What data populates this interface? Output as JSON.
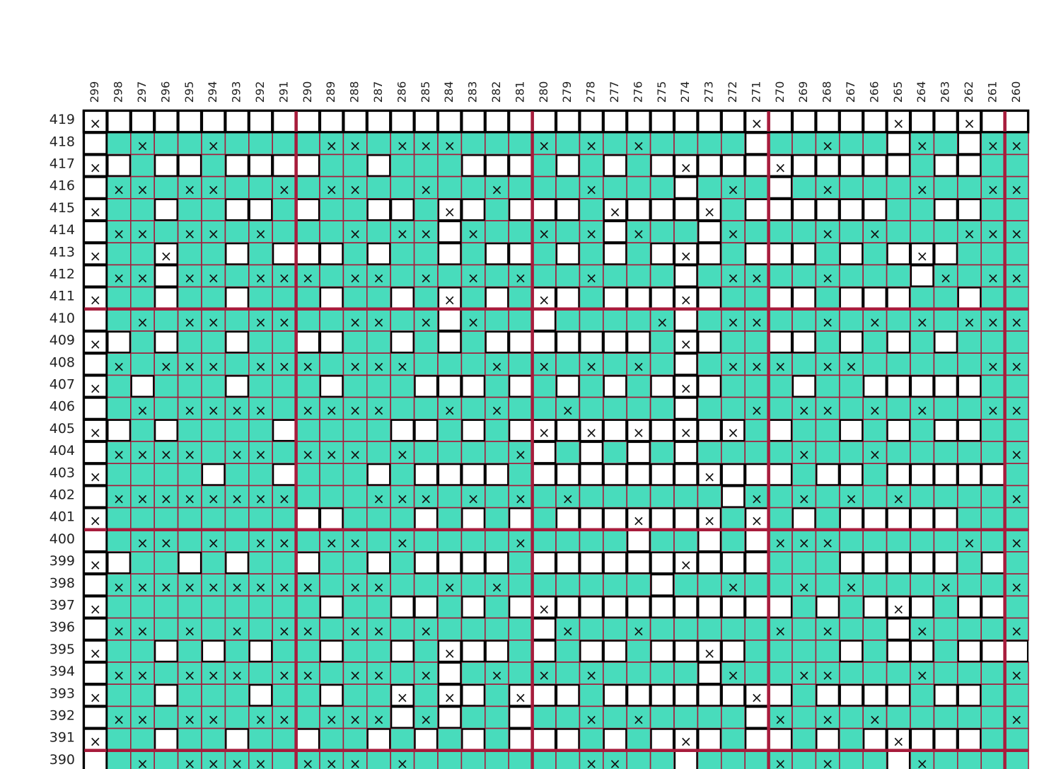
{
  "columns": [
    "299",
    "298",
    "297",
    "296",
    "295",
    "294",
    "293",
    "292",
    "291",
    "290",
    "289",
    "288",
    "287",
    "286",
    "285",
    "284",
    "283",
    "282",
    "281",
    "280",
    "279",
    "278",
    "277",
    "276",
    "275",
    "274",
    "273",
    "272",
    "271",
    "270",
    "269",
    "268",
    "267",
    "266",
    "265",
    "264",
    "263",
    "262",
    "261",
    "260"
  ],
  "rows": [
    "419",
    "418",
    "417",
    "416",
    "415",
    "414",
    "413",
    "412",
    "411",
    "410",
    "409",
    "408",
    "407",
    "406",
    "405",
    "404",
    "403",
    "402",
    "401",
    "400",
    "399",
    "398",
    "397",
    "396",
    "395",
    "394",
    "393",
    "392",
    "391",
    "390"
  ],
  "mark": "×"
}
